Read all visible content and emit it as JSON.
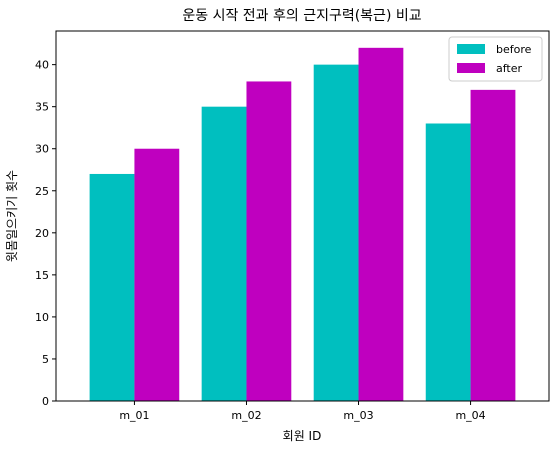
{
  "chart_data": {
    "type": "bar",
    "title": "운동 시작 전과 후의 근지구력(복근) 비교",
    "xlabel": "회원 ID",
    "ylabel": "윗몸일으키기 횟수",
    "categories": [
      "m_01",
      "m_02",
      "m_03",
      "m_04"
    ],
    "series": [
      {
        "name": "before",
        "values": [
          27,
          35,
          40,
          33
        ],
        "color": "#00BFBF"
      },
      {
        "name": "after",
        "values": [
          30,
          38,
          42,
          37
        ],
        "color": "#BF00BF"
      }
    ],
    "ylim": [
      0,
      44
    ],
    "yticks": [
      0,
      5,
      10,
      15,
      20,
      25,
      30,
      35,
      40
    ],
    "grid": false,
    "legend_position": "top-right"
  }
}
